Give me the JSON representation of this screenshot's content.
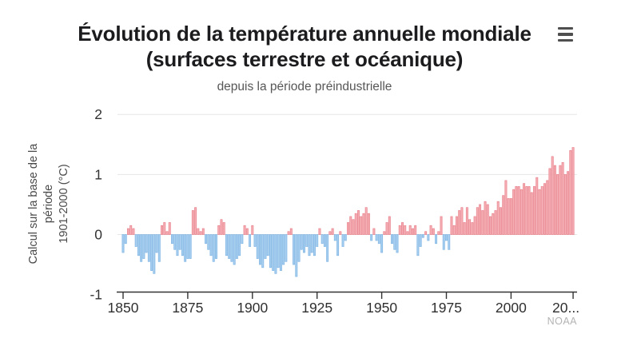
{
  "header": {
    "title_line1": "Évolution de la température annuelle mondiale",
    "title_line2": "(surfaces terrestre et océanique)",
    "subtitle": "depuis la période préindustrielle"
  },
  "attribution": "NOAA",
  "colors": {
    "title": "#1c1c1e",
    "subtitle": "#575757",
    "axis": "#333333",
    "gridline": "#e6e6e6",
    "positive_fill": "#f5aeb4",
    "positive_stroke": "#e87e89",
    "negative_fill": "#a6ceef",
    "negative_stroke": "#7db3e3",
    "attribution": "#b3b3b3"
  },
  "chart_data": {
    "type": "bar",
    "title": "Évolution de la température annuelle mondiale (surfaces terrestre et océanique)",
    "subtitle": "depuis la période préindustrielle",
    "ylabel": "Calcul sur la base de la période 1901-2000 (°C)",
    "ylabel_lines": [
      "Calcul sur la base de la",
      "période",
      "1901-2000 (°C)"
    ],
    "ylim": [
      -1,
      2
    ],
    "y_ticks": [
      2,
      1,
      0,
      -1
    ],
    "grid": "horizontal",
    "x_ticks": [
      {
        "year": 1850,
        "label": "1850"
      },
      {
        "year": 1875,
        "label": "1875"
      },
      {
        "year": 1900,
        "label": "1900"
      },
      {
        "year": 1925,
        "label": "1925"
      },
      {
        "year": 1950,
        "label": "1950"
      },
      {
        "year": 1975,
        "label": "1975"
      },
      {
        "year": 2000,
        "label": "2000"
      },
      {
        "year": 2024,
        "label": "20..."
      }
    ],
    "start_year": 1850,
    "end_year": 2024,
    "unit": "°C",
    "values": [
      -0.3,
      -0.15,
      0.1,
      0.15,
      0.1,
      -0.2,
      -0.35,
      -0.45,
      -0.4,
      -0.3,
      -0.45,
      -0.6,
      -0.65,
      -0.3,
      -0.45,
      0.15,
      0.2,
      0.05,
      0.2,
      -0.15,
      -0.25,
      -0.35,
      -0.25,
      -0.35,
      -0.45,
      -0.4,
      -0.4,
      0.4,
      0.45,
      0.1,
      0.05,
      0.1,
      -0.15,
      -0.25,
      -0.35,
      -0.45,
      -0.4,
      0.15,
      0.25,
      0.2,
      -0.35,
      -0.4,
      -0.45,
      -0.5,
      -0.4,
      -0.35,
      -0.15,
      0.15,
      0.1,
      -0.2,
      0.15,
      -0.2,
      -0.4,
      -0.5,
      -0.55,
      -0.4,
      -0.35,
      -0.55,
      -0.6,
      -0.65,
      -0.55,
      -0.6,
      -0.5,
      -0.45,
      0.05,
      0.1,
      -0.5,
      -0.7,
      -0.45,
      -0.25,
      -0.3,
      -0.2,
      -0.35,
      -0.3,
      -0.35,
      -0.2,
      0.1,
      -0.15,
      -0.2,
      -0.45,
      0.05,
      0.1,
      -0.1,
      -0.35,
      0.05,
      -0.2,
      -0.1,
      0.2,
      0.3,
      0.25,
      0.35,
      0.4,
      0.3,
      0.35,
      0.45,
      0.35,
      -0.1,
      0.1,
      -0.1,
      -0.15,
      -0.3,
      0.05,
      0.2,
      0.3,
      -0.15,
      -0.25,
      -0.3,
      0.15,
      0.2,
      0.15,
      0.05,
      0.15,
      0.1,
      0.15,
      -0.35,
      -0.2,
      -0.05,
      0.05,
      -0.1,
      0.15,
      0.1,
      -0.15,
      0.05,
      0.3,
      -0.25,
      -0.1,
      -0.25,
      0.3,
      0.15,
      0.3,
      0.4,
      0.45,
      0.2,
      0.45,
      0.25,
      0.2,
      0.3,
      0.45,
      0.5,
      0.4,
      0.55,
      0.5,
      0.3,
      0.35,
      0.4,
      0.55,
      0.45,
      0.65,
      0.9,
      0.6,
      0.6,
      0.75,
      0.8,
      0.8,
      0.75,
      0.85,
      0.8,
      0.8,
      0.7,
      0.8,
      0.95,
      0.75,
      0.8,
      0.85,
      0.9,
      1.1,
      1.3,
      1.15,
      1.0,
      1.15,
      1.2,
      1.0,
      1.05,
      1.4,
      1.45
    ]
  }
}
